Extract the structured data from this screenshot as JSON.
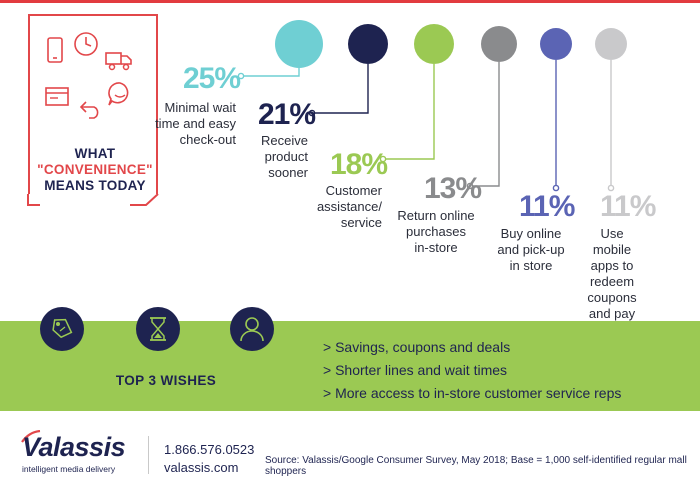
{
  "colors": {
    "accent_red": "#e2474a",
    "navy": "#1e2350",
    "band_green": "#9bc953"
  },
  "header": {
    "line1": "WHAT",
    "line2": "\"CONVENIENCE\"",
    "line3": "MEANS TODAY",
    "icons": [
      "smartphone-icon",
      "clock-icon",
      "delivery-truck-icon",
      "browser-window-icon",
      "return-arrow-icon",
      "chat-bubble-icon"
    ]
  },
  "chart_data": {
    "type": "bar",
    "title": "",
    "categories": [
      "Minimal wait time and easy check-out",
      "Receive product sooner",
      "Customer assistance/ service",
      "Return online purchases in-store",
      "Buy online and pick-up in store",
      "Use mobile apps to redeem coupons and pay"
    ],
    "values": [
      25,
      21,
      18,
      13,
      11,
      11
    ],
    "value_labels": [
      "25%",
      "21%",
      "18%",
      "13%",
      "11%",
      "11%"
    ],
    "label_lines": [
      [
        "Minimal wait",
        "time and easy",
        "check-out"
      ],
      [
        "Receive",
        "product",
        "sooner"
      ],
      [
        "Customer",
        "assistance/",
        "service"
      ],
      [
        "Return online",
        "purchases",
        "in-store"
      ],
      [
        "Buy online",
        "and pick-up",
        "in store"
      ],
      [
        "Use mobile",
        "apps to",
        "redeem",
        "coupons",
        "and pay"
      ]
    ],
    "colors": [
      "#6fcfd3",
      "#1e2350",
      "#9bc953",
      "#8a8b8d",
      "#5b64b4",
      "#c9c9cb"
    ],
    "unit": "%"
  },
  "wishes": {
    "title": "TOP 3 WISHES",
    "icons": [
      "price-tag-icon",
      "hourglass-icon",
      "customer-service-person-icon"
    ],
    "items": [
      "> Savings, coupons and deals",
      "> Shorter lines and wait times",
      "> More access to in-store customer service reps"
    ]
  },
  "footer": {
    "logo": "Valassis",
    "tagline": "intelligent media delivery",
    "phone": "1.866.576.0523",
    "website": "valassis.com",
    "source": "Source:  Valassis/Google Consumer Survey, May 2018; Base = 1,000 self-identified regular mall shoppers"
  }
}
